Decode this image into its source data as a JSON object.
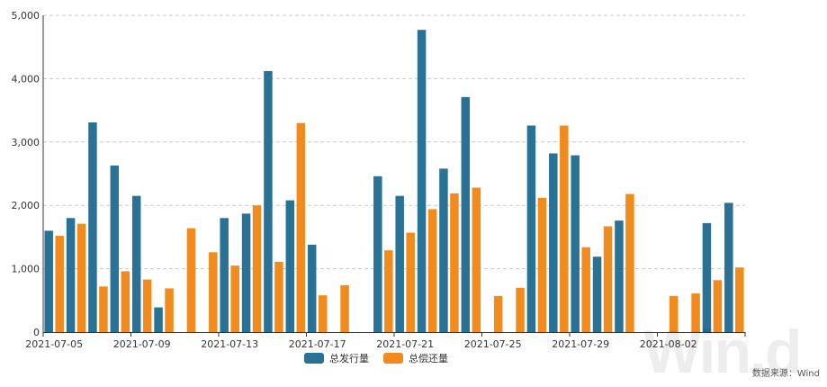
{
  "chart_data": {
    "type": "bar",
    "title": "",
    "xlabel": "",
    "ylabel": "",
    "ylim": [
      0,
      5000
    ],
    "yticks": [
      0,
      1000,
      2000,
      3000,
      4000,
      5000
    ],
    "ytick_labels": [
      "0",
      "1,000",
      "2,000",
      "3,000",
      "4,000",
      "5,000"
    ],
    "xtick_labels": [
      "2021-07-05",
      "2021-07-09",
      "2021-07-13",
      "2021-07-17",
      "2021-07-21",
      "2021-07-25",
      "2021-07-29",
      "2021-08-02"
    ],
    "categories": [
      "2021-07-05",
      "2021-07-06",
      "2021-07-07",
      "2021-07-08",
      "2021-07-09",
      "2021-07-10",
      "2021-07-11",
      "2021-07-12",
      "2021-07-13",
      "2021-07-14",
      "2021-07-15",
      "2021-07-16",
      "2021-07-17",
      "2021-07-18",
      "2021-07-19",
      "2021-07-20",
      "2021-07-21",
      "2021-07-22",
      "2021-07-23",
      "2021-07-24",
      "2021-07-25",
      "2021-07-26",
      "2021-07-27",
      "2021-07-28",
      "2021-07-29",
      "2021-07-30",
      "2021-07-31",
      "2021-08-01",
      "2021-08-02",
      "2021-08-03",
      "2021-08-04",
      "2021-08-05"
    ],
    "series": [
      {
        "name": "总发行量",
        "color": "#2a7295",
        "values": [
          1600,
          1800,
          3310,
          2630,
          2150,
          390,
          0,
          0,
          1800,
          1870,
          4120,
          2080,
          1380,
          0,
          0,
          2460,
          2150,
          4770,
          2580,
          3710,
          0,
          0,
          3260,
          2820,
          2790,
          1190,
          1760,
          0,
          0,
          0,
          1720,
          2040
        ]
      },
      {
        "name": "总偿还量",
        "color": "#f28b1e",
        "values": [
          1520,
          1710,
          720,
          960,
          830,
          690,
          1640,
          1260,
          1050,
          2000,
          1110,
          3300,
          580,
          740,
          0,
          1290,
          1570,
          1940,
          2190,
          2280,
          570,
          700,
          2120,
          3260,
          1340,
          1670,
          2180,
          0,
          570,
          610,
          820,
          1020
        ]
      }
    ],
    "legend_position": "bottom"
  },
  "source_note": "数据来源：Wind",
  "watermark": "Win.d"
}
